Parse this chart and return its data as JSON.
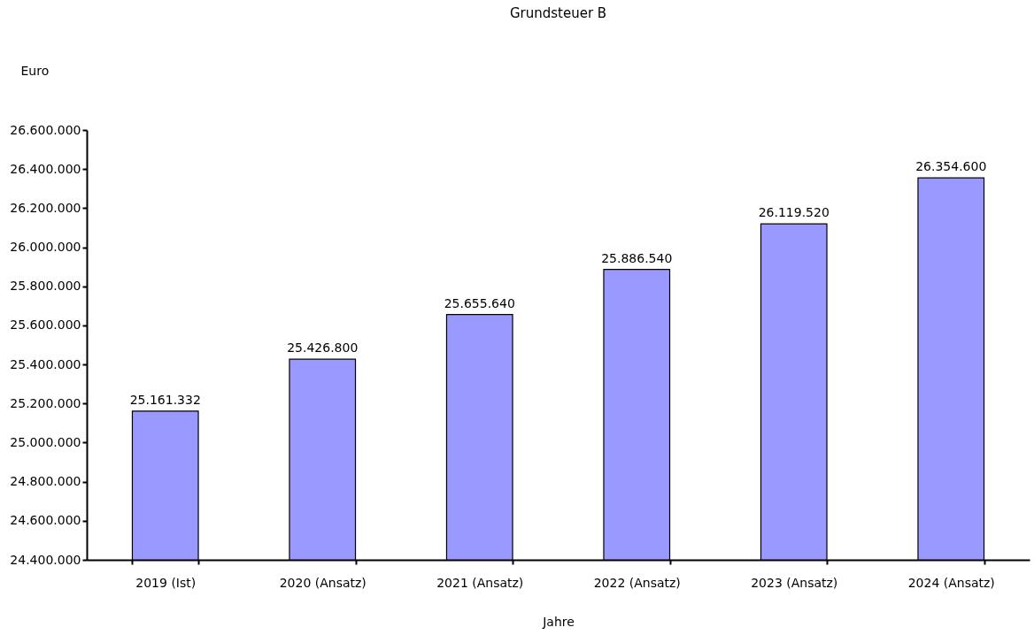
{
  "chart_data": {
    "type": "bar",
    "title": "Grundsteuer B",
    "xlabel": "Jahre",
    "ylabel": "Euro",
    "categories": [
      "2019 (Ist)",
      "2020 (Ansatz)",
      "2021 (Ansatz)",
      "2022 (Ansatz)",
      "2023 (Ansatz)",
      "2024 (Ansatz)"
    ],
    "values": [
      25161332,
      25426800,
      25655640,
      25886540,
      26119520,
      26354600
    ],
    "value_labels": [
      "25.161.332",
      "25.426.800",
      "25.655.640",
      "25.886.540",
      "26.119.520",
      "26.354.600"
    ],
    "color": "#9999ff",
    "ylim": [
      24400000,
      26600000
    ],
    "yticks": [
      {
        "value": 24400000,
        "label": "24.400.000"
      },
      {
        "value": 24600000,
        "label": "24.600.000"
      },
      {
        "value": 24800000,
        "label": "24.800.000"
      },
      {
        "value": 25000000,
        "label": "25.000.000"
      },
      {
        "value": 25200000,
        "label": "25.200.000"
      },
      {
        "value": 25400000,
        "label": "25.400.000"
      },
      {
        "value": 25600000,
        "label": "25.600.000"
      },
      {
        "value": 25800000,
        "label": "25.800.000"
      },
      {
        "value": 26000000,
        "label": "26.000.000"
      },
      {
        "value": 26200000,
        "label": "26.200.000"
      },
      {
        "value": 26400000,
        "label": "26.400.000"
      },
      {
        "value": 26600000,
        "label": "26.600.000"
      }
    ]
  }
}
